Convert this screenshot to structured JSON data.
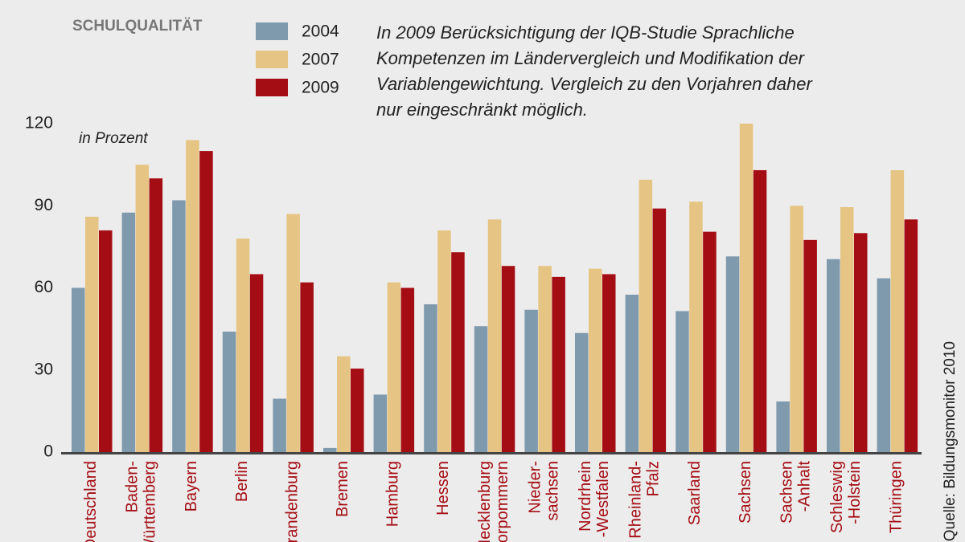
{
  "chart_data": {
    "type": "bar",
    "title": "SCHULQUALITÄT",
    "note": [
      "In 2009 Berücksichtigung der IQB-Studie Sprachliche",
      "Kompetenzen im Ländervergleich und Modifikation der",
      "Variablengewichtung. Vergleich zu den Vorjahren daher",
      "nur eingeschränkt möglich."
    ],
    "y_label": "in Prozent",
    "source": "Quelle: Bildungsmonitor 2010",
    "categories": [
      [
        "Deutschland"
      ],
      [
        "Baden-",
        "Württemberg"
      ],
      [
        "Bayern"
      ],
      [
        "Berlin"
      ],
      [
        "Brandenburg"
      ],
      [
        "Bremen"
      ],
      [
        "Hamburg"
      ],
      [
        "Hessen"
      ],
      [
        "Mecklenburg",
        "-Vorpommern"
      ],
      [
        "Nieder-",
        "sachsen"
      ],
      [
        "Nordrhein",
        "-Westfalen"
      ],
      [
        "Rheinland-",
        "Pfalz"
      ],
      [
        "Saarland"
      ],
      [
        "Sachsen"
      ],
      [
        "Sachsen",
        "-Anhalt"
      ],
      [
        "Schleswig",
        "-Holstein"
      ],
      [
        "Thüringen"
      ]
    ],
    "series": [
      {
        "name": "2004",
        "color": "#7f99ad",
        "values": [
          60,
          87.5,
          92,
          44,
          19.5,
          1.5,
          21,
          54,
          46,
          52,
          43.5,
          57.5,
          51.5,
          71.5,
          18.5,
          70.5,
          63.5
        ]
      },
      {
        "name": "2007",
        "color": "#e6c584",
        "values": [
          86,
          105,
          114,
          78,
          87,
          35,
          62,
          81,
          85,
          68,
          67,
          99.5,
          91.5,
          120,
          90,
          89.5,
          103
        ]
      },
      {
        "name": "2009",
        "color": "#a50d14",
        "values": [
          81,
          100,
          110,
          65,
          62,
          30.5,
          60,
          73,
          68,
          64,
          65,
          89,
          80.5,
          103,
          77.5,
          80,
          85
        ]
      }
    ],
    "ylim": [
      0,
      120
    ],
    "yticks": [
      0,
      30,
      60,
      90,
      120
    ],
    "grid": false
  }
}
